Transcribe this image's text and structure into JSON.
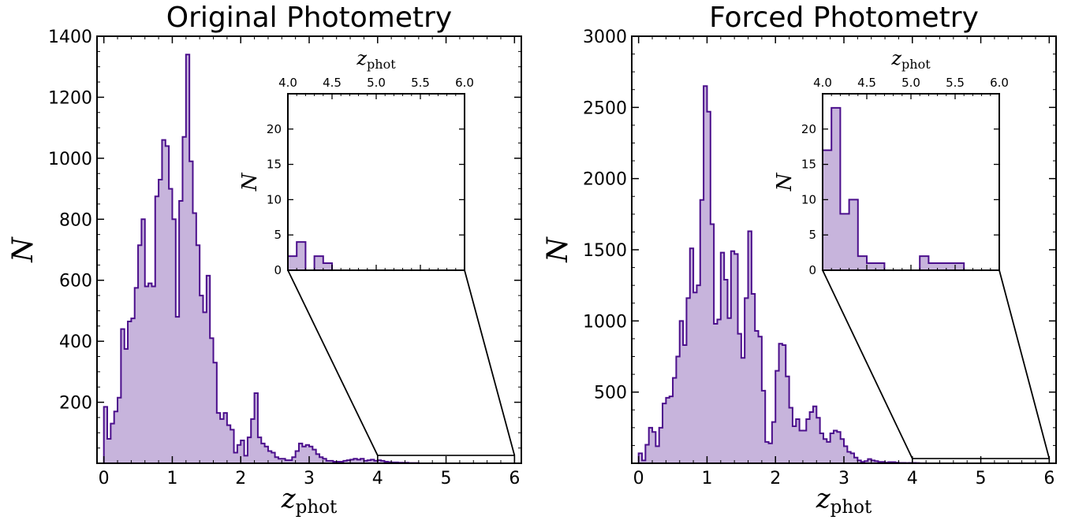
{
  "colors": {
    "fill": "#c7b4dc",
    "line": "#4b0f8c",
    "axis": "#000000"
  },
  "chart_data": [
    {
      "type": "histogram",
      "title": "Original Photometry",
      "xlabel_main": "z",
      "xlabel_sub": "phot",
      "ylabel": "N",
      "xlim": [
        -0.1,
        6.1
      ],
      "ylim": [
        0,
        1400
      ],
      "xticks": [
        0,
        1,
        2,
        3,
        4,
        5,
        6
      ],
      "yticks": [
        200,
        400,
        600,
        800,
        1000,
        1200,
        1400
      ],
      "bin_width": 0.05,
      "x0": 0.0,
      "values": [
        185,
        80,
        130,
        170,
        215,
        440,
        375,
        465,
        475,
        575,
        715,
        800,
        580,
        590,
        580,
        875,
        930,
        1060,
        1040,
        900,
        800,
        480,
        860,
        1070,
        1340,
        990,
        820,
        715,
        550,
        495,
        615,
        410,
        330,
        165,
        145,
        165,
        125,
        110,
        35,
        60,
        75,
        25,
        85,
        145,
        230,
        85,
        65,
        55,
        40,
        35,
        20,
        15,
        15,
        10,
        10,
        20,
        40,
        65,
        55,
        60,
        55,
        45,
        30,
        20,
        15,
        8,
        8,
        5,
        5,
        5,
        8,
        10,
        12,
        15,
        12,
        15,
        8,
        10,
        12,
        8,
        10,
        8,
        5,
        4,
        3,
        3,
        2,
        2,
        2,
        1,
        1,
        1,
        0,
        0,
        0,
        0,
        0,
        0,
        0,
        0
      ],
      "inset": {
        "title_main": "z",
        "title_sub": "phot",
        "ylabel": "N",
        "xlim": [
          4.0,
          6.0
        ],
        "ylim": [
          0,
          25
        ],
        "xtick_labels": [
          "4.0",
          "4.5",
          "5.0",
          "5.5",
          "6.0"
        ],
        "yticks": [
          0,
          5,
          10,
          15,
          20
        ],
        "bin_width": 0.1,
        "x0": 4.0,
        "values": [
          2,
          4,
          0,
          2,
          1,
          0,
          0,
          0,
          0,
          0,
          0,
          0,
          0,
          0,
          0,
          0,
          0,
          0,
          0,
          0
        ]
      }
    },
    {
      "type": "histogram",
      "title": "Forced Photometry",
      "xlabel_main": "z",
      "xlabel_sub": "phot",
      "ylabel": "N",
      "xlim": [
        -0.1,
        6.1
      ],
      "ylim": [
        0,
        3000
      ],
      "xticks": [
        0,
        1,
        2,
        3,
        4,
        5,
        6
      ],
      "yticks": [
        500,
        1000,
        1500,
        2000,
        2500,
        3000
      ],
      "bin_width": 0.05,
      "x0": 0.0,
      "values": [
        70,
        20,
        130,
        250,
        220,
        120,
        250,
        420,
        460,
        470,
        600,
        750,
        1000,
        830,
        1160,
        1510,
        1200,
        1250,
        1850,
        2650,
        2470,
        1680,
        980,
        1010,
        1480,
        1290,
        1020,
        1490,
        1470,
        910,
        740,
        1160,
        1630,
        1190,
        930,
        890,
        510,
        150,
        140,
        290,
        650,
        840,
        830,
        610,
        390,
        260,
        310,
        230,
        230,
        310,
        360,
        400,
        320,
        210,
        170,
        150,
        210,
        230,
        220,
        170,
        120,
        80,
        70,
        40,
        20,
        10,
        15,
        30,
        20,
        15,
        10,
        10,
        5,
        8,
        8,
        5,
        3,
        3,
        2,
        3,
        3,
        2,
        1,
        1,
        0,
        0,
        0,
        0,
        0,
        0,
        0,
        0,
        0,
        0,
        0,
        0,
        0,
        0,
        0,
        0,
        0,
        0,
        0,
        0,
        0,
        0,
        0,
        0,
        0,
        0,
        0,
        0,
        0,
        0,
        0,
        0,
        0,
        0,
        0,
        0
      ],
      "inset": {
        "title_main": "z",
        "title_sub": "phot",
        "ylabel": "N",
        "xlim": [
          4.0,
          6.0
        ],
        "ylim": [
          0,
          25
        ],
        "xtick_labels": [
          "4.0",
          "4.5",
          "5.0",
          "5.5",
          "6.0"
        ],
        "yticks": [
          0,
          5,
          10,
          15,
          20
        ],
        "bin_width": 0.1,
        "x0": 4.0,
        "values": [
          17,
          23,
          8,
          10,
          2,
          1,
          1,
          0,
          0,
          0,
          0,
          2,
          1,
          1,
          1,
          1,
          0,
          0,
          0,
          0
        ]
      }
    }
  ]
}
